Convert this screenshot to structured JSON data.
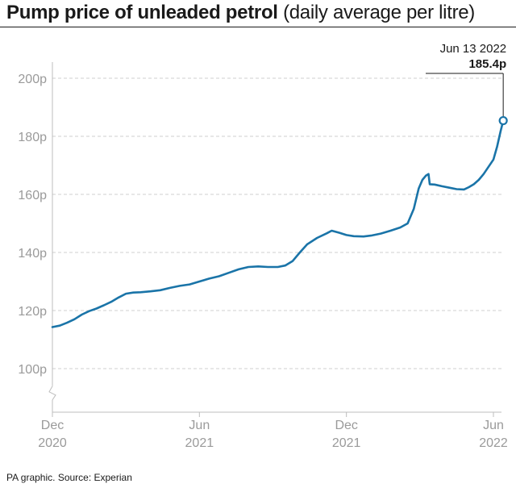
{
  "header": {
    "title_main": "Pump price of unleaded petrol",
    "title_sub": "(daily average per litre)"
  },
  "footer": {
    "source": "PA graphic. Source: Experian"
  },
  "colors": {
    "line": "#1a74a8",
    "grid": "#cfcfcf",
    "axis": "#bdbdbd",
    "tick_text": "#9a9a9a"
  },
  "chart_data": {
    "type": "line",
    "title": "Pump price of unleaded petrol (daily average per litre)",
    "xlabel": "",
    "ylabel": "",
    "x_range": [
      0,
      18.4
    ],
    "ylim": [
      85,
      200
    ],
    "y_ticks": [
      100,
      120,
      140,
      160,
      180,
      200
    ],
    "y_tick_labels": [
      "100p",
      "120p",
      "140p",
      "160p",
      "180p",
      "200p"
    ],
    "x_ticks": [
      {
        "t": 0,
        "line1": "Dec",
        "line2": "2020"
      },
      {
        "t": 6,
        "line1": "Jun",
        "line2": "2021"
      },
      {
        "t": 12,
        "line1": "Dec",
        "line2": "2021"
      },
      {
        "t": 18,
        "line1": "Jun",
        "line2": "2022"
      }
    ],
    "axis_break": true,
    "grid": true,
    "x_unit": "months since 1 Dec 2020",
    "series": [
      {
        "name": "Unleaded petrol",
        "points": [
          [
            0.0,
            114.3
          ],
          [
            0.3,
            114.8
          ],
          [
            0.6,
            115.8
          ],
          [
            0.9,
            117.0
          ],
          [
            1.2,
            118.6
          ],
          [
            1.5,
            119.8
          ],
          [
            1.8,
            120.7
          ],
          [
            2.1,
            121.8
          ],
          [
            2.4,
            123.0
          ],
          [
            2.7,
            124.5
          ],
          [
            3.0,
            125.8
          ],
          [
            3.3,
            126.2
          ],
          [
            3.6,
            126.3
          ],
          [
            4.0,
            126.6
          ],
          [
            4.4,
            127.0
          ],
          [
            4.8,
            127.8
          ],
          [
            5.2,
            128.5
          ],
          [
            5.6,
            129.0
          ],
          [
            6.0,
            130.0
          ],
          [
            6.4,
            131.0
          ],
          [
            6.8,
            131.8
          ],
          [
            7.2,
            133.0
          ],
          [
            7.6,
            134.2
          ],
          [
            8.0,
            135.0
          ],
          [
            8.4,
            135.2
          ],
          [
            8.8,
            135.0
          ],
          [
            9.2,
            135.0
          ],
          [
            9.5,
            135.5
          ],
          [
            9.8,
            137.0
          ],
          [
            10.1,
            140.0
          ],
          [
            10.4,
            142.8
          ],
          [
            10.8,
            145.0
          ],
          [
            11.2,
            146.6
          ],
          [
            11.4,
            147.5
          ],
          [
            11.7,
            146.8
          ],
          [
            12.0,
            146.0
          ],
          [
            12.3,
            145.6
          ],
          [
            12.7,
            145.5
          ],
          [
            13.0,
            145.8
          ],
          [
            13.4,
            146.5
          ],
          [
            13.8,
            147.5
          ],
          [
            14.2,
            148.6
          ],
          [
            14.5,
            150.0
          ],
          [
            14.75,
            155.0
          ],
          [
            14.95,
            162.0
          ],
          [
            15.1,
            165.0
          ],
          [
            15.25,
            166.5
          ],
          [
            15.35,
            167.0
          ],
          [
            15.4,
            163.5
          ],
          [
            15.6,
            163.4
          ],
          [
            15.9,
            162.8
          ],
          [
            16.2,
            162.3
          ],
          [
            16.5,
            161.8
          ],
          [
            16.8,
            161.7
          ],
          [
            17.0,
            162.5
          ],
          [
            17.2,
            163.5
          ],
          [
            17.4,
            165.0
          ],
          [
            17.6,
            167.0
          ],
          [
            17.8,
            169.5
          ],
          [
            18.0,
            172.0
          ],
          [
            18.15,
            176.5
          ],
          [
            18.3,
            182.0
          ],
          [
            18.4,
            185.4
          ]
        ]
      }
    ],
    "annotation": {
      "date": "Jun 13 2022",
      "value_label": "185.4p",
      "t": 18.4,
      "value": 185.4
    }
  }
}
